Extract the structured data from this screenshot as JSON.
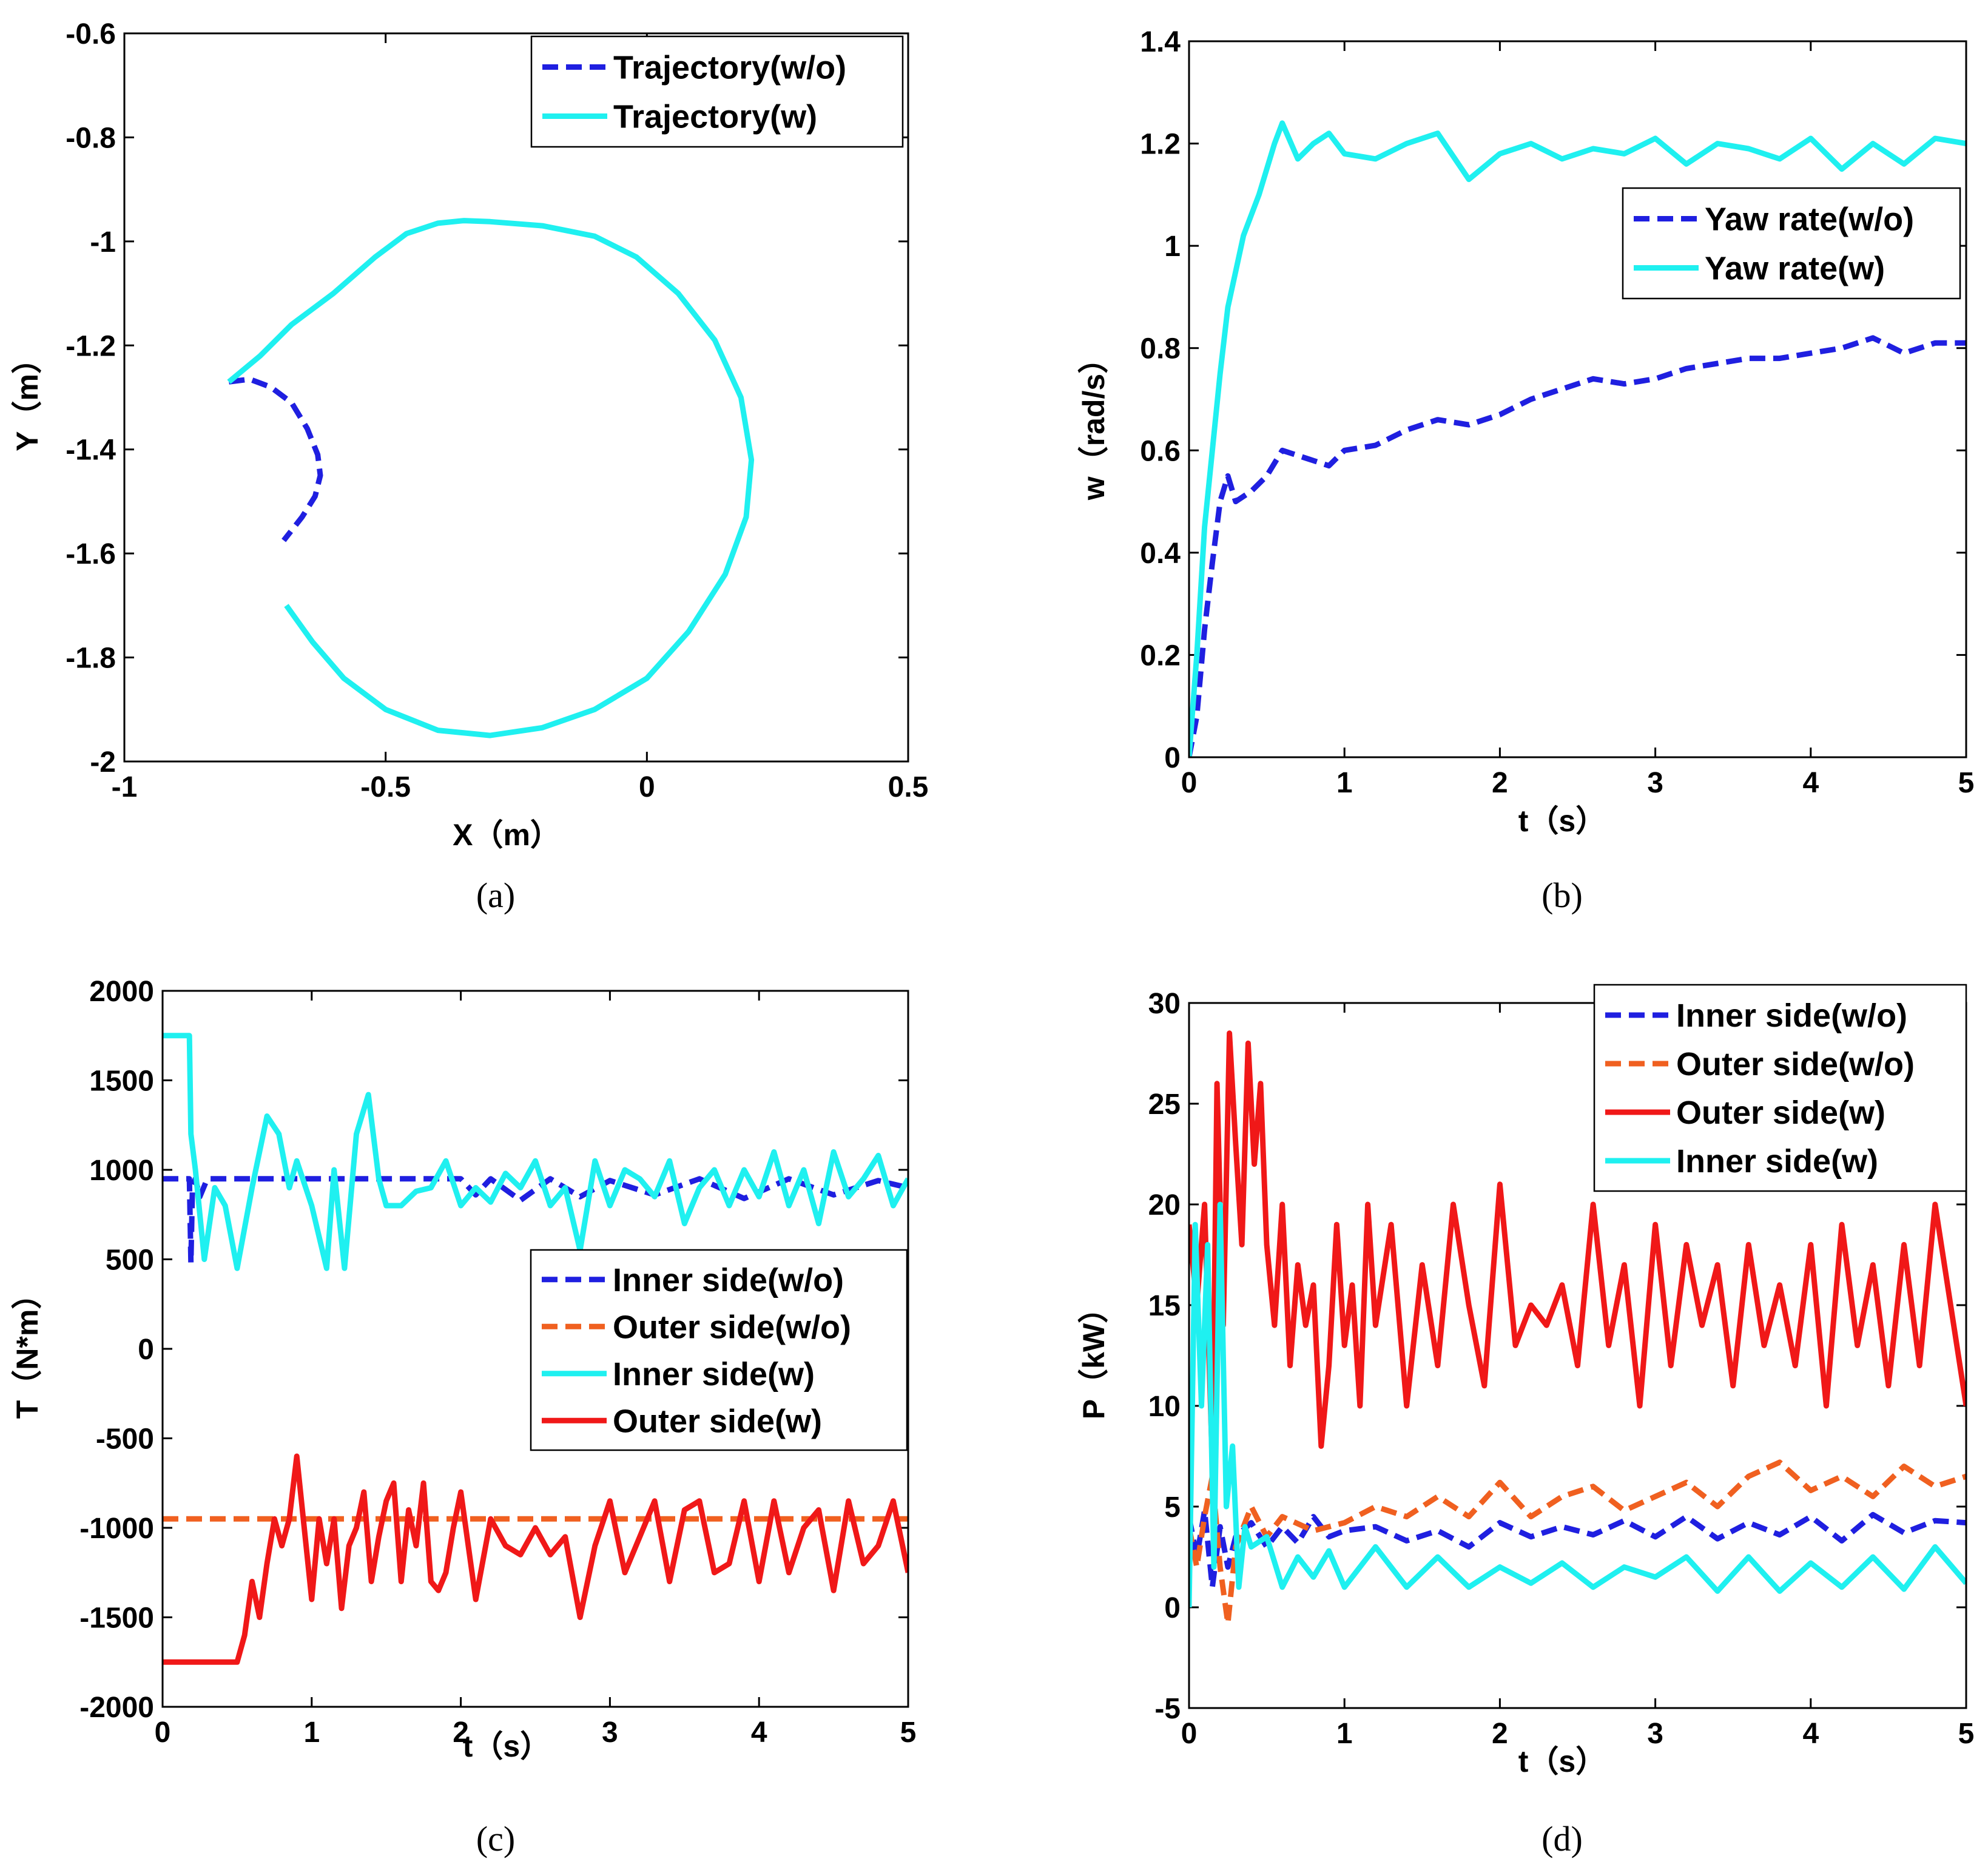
{
  "chart_data": [
    {
      "type": "line",
      "caption": "(a)",
      "xlabel": "X（m）",
      "ylabel": "Y（m）",
      "xlim": [
        -1,
        0.5
      ],
      "ylim": [
        -2,
        -0.6
      ],
      "y_reversed": true,
      "xticks": [
        -1,
        -0.5,
        0,
        0.5
      ],
      "xtick_labels": [
        "-1",
        "-0.5",
        "0",
        "0.5"
      ],
      "yticks": [
        -0.6,
        -0.8,
        -1,
        -1.2,
        -1.4,
        -1.6,
        -1.8,
        -2
      ],
      "ytick_labels": [
        "-0.6",
        "-0.8",
        "-1",
        "-1.2",
        "-1.4",
        "-1.6",
        "-1.8",
        "-2"
      ],
      "legend_position": "top-right",
      "series": [
        {
          "name": "Trajectory(w/o)",
          "color": "#1f1fe0",
          "style": "dashed",
          "x": [
            -0.8,
            -0.76,
            -0.72,
            -0.68,
            -0.65,
            -0.63,
            -0.625,
            -0.635,
            -0.66,
            -0.695
          ],
          "y": [
            -1.27,
            -1.265,
            -1.28,
            -1.31,
            -1.36,
            -1.41,
            -1.45,
            -1.49,
            -1.53,
            -1.575
          ]
        },
        {
          "name": "Trajectory(w)",
          "color": "#1ff0f0",
          "style": "solid",
          "x": [
            -0.8,
            -0.74,
            -0.68,
            -0.6,
            -0.52,
            -0.46,
            -0.4,
            -0.35,
            -0.3,
            -0.2,
            -0.1,
            -0.02,
            0.06,
            0.13,
            0.18,
            0.2,
            0.19,
            0.15,
            0.08,
            0,
            -0.1,
            -0.2,
            -0.3,
            -0.4,
            -0.5,
            -0.58,
            -0.64,
            -0.69
          ],
          "y": [
            -1.27,
            -1.22,
            -1.16,
            -1.1,
            -1.03,
            -0.985,
            -0.965,
            -0.96,
            -0.962,
            -0.97,
            -0.99,
            -1.03,
            -1.1,
            -1.19,
            -1.3,
            -1.42,
            -1.53,
            -1.64,
            -1.75,
            -1.84,
            -1.9,
            -1.935,
            -1.95,
            -1.94,
            -1.9,
            -1.84,
            -1.77,
            -1.7
          ]
        }
      ]
    },
    {
      "type": "line",
      "caption": "(b)",
      "xlabel": "t（s）",
      "ylabel": "w（rad/s）",
      "xlim": [
        0,
        5
      ],
      "ylim": [
        0,
        1.4
      ],
      "xticks": [
        0,
        1,
        2,
        3,
        4,
        5
      ],
      "xtick_labels": [
        "0",
        "1",
        "2",
        "3",
        "4",
        "5"
      ],
      "yticks": [
        0,
        0.2,
        0.4,
        0.6,
        0.8,
        1,
        1.2,
        1.4
      ],
      "ytick_labels": [
        "0",
        "0.2",
        "0.4",
        "0.6",
        "0.8",
        "1",
        "1.2",
        "1.4"
      ],
      "legend_position": "upper-right",
      "series": [
        {
          "name": "Yaw rate(w/o)",
          "color": "#1f1fe0",
          "style": "dashed",
          "x": [
            0,
            0.05,
            0.1,
            0.15,
            0.2,
            0.25,
            0.3,
            0.4,
            0.5,
            0.6,
            0.7,
            0.8,
            0.9,
            1.0,
            1.2,
            1.4,
            1.6,
            1.8,
            2.0,
            2.2,
            2.4,
            2.6,
            2.8,
            3.0,
            3.2,
            3.4,
            3.6,
            3.8,
            4.0,
            4.2,
            4.4,
            4.6,
            4.8,
            5.0
          ],
          "y": [
            0,
            0.08,
            0.25,
            0.38,
            0.5,
            0.55,
            0.5,
            0.52,
            0.55,
            0.6,
            0.59,
            0.58,
            0.57,
            0.6,
            0.61,
            0.64,
            0.66,
            0.65,
            0.67,
            0.7,
            0.72,
            0.74,
            0.73,
            0.74,
            0.76,
            0.77,
            0.78,
            0.78,
            0.79,
            0.8,
            0.82,
            0.79,
            0.81,
            0.81
          ]
        },
        {
          "name": "Yaw rate(w)",
          "color": "#1ff0f0",
          "style": "solid",
          "x": [
            0,
            0.05,
            0.1,
            0.15,
            0.2,
            0.25,
            0.3,
            0.35,
            0.4,
            0.45,
            0.5,
            0.55,
            0.6,
            0.7,
            0.8,
            0.9,
            1.0,
            1.2,
            1.4,
            1.6,
            1.8,
            2.0,
            2.2,
            2.4,
            2.6,
            2.8,
            3.0,
            3.2,
            3.4,
            3.6,
            3.8,
            4.0,
            4.2,
            4.4,
            4.6,
            4.8,
            5.0
          ],
          "y": [
            0,
            0.2,
            0.45,
            0.6,
            0.75,
            0.88,
            0.95,
            1.02,
            1.06,
            1.1,
            1.15,
            1.2,
            1.24,
            1.17,
            1.2,
            1.22,
            1.18,
            1.17,
            1.2,
            1.22,
            1.13,
            1.18,
            1.2,
            1.17,
            1.19,
            1.18,
            1.21,
            1.16,
            1.2,
            1.19,
            1.17,
            1.21,
            1.15,
            1.2,
            1.16,
            1.21,
            1.2
          ]
        }
      ]
    },
    {
      "type": "line",
      "caption": "(c)",
      "xlabel": "t（s）",
      "ylabel": "T（N*m）",
      "xlim": [
        0,
        5
      ],
      "ylim": [
        -2000,
        2000
      ],
      "xticks": [
        0,
        1,
        2,
        3,
        4,
        5
      ],
      "xtick_labels": [
        "0",
        "1",
        "2",
        "3",
        "4",
        "5"
      ],
      "yticks": [
        2000,
        1500,
        1000,
        500,
        0,
        -500,
        -1000,
        -1500,
        -2000
      ],
      "ytick_labels": [
        "2000",
        "1500",
        "1000",
        "500",
        "0",
        "-500",
        "-1000",
        "-1500",
        "-2000"
      ],
      "legend_position": "center-right",
      "series": [
        {
          "name": "Inner side(w/o)",
          "color": "#1f1fe0",
          "style": "dashed",
          "x": [
            0,
            0.18,
            0.19,
            0.2,
            0.22,
            0.25,
            0.3,
            0.5,
            0.8,
            1.0,
            1.5,
            2.0,
            2.1,
            2.2,
            2.4,
            2.6,
            2.8,
            3.0,
            3.3,
            3.6,
            3.9,
            4.2,
            4.5,
            4.8,
            5.0
          ],
          "y": [
            950,
            950,
            480,
            900,
            950,
            850,
            950,
            950,
            950,
            950,
            950,
            950,
            860,
            950,
            830,
            950,
            850,
            940,
            860,
            950,
            840,
            950,
            860,
            940,
            900
          ]
        },
        {
          "name": "Outer side(w/o)",
          "color": "#f06020",
          "style": "dashed",
          "x": [
            0,
            5
          ],
          "y": [
            -950,
            -950
          ]
        },
        {
          "name": "Inner side(w)",
          "color": "#1ff0f0",
          "style": "solid",
          "x": [
            0,
            0.18,
            0.19,
            0.22,
            0.28,
            0.35,
            0.42,
            0.5,
            0.6,
            0.7,
            0.78,
            0.85,
            0.9,
            1.0,
            1.1,
            1.15,
            1.22,
            1.3,
            1.38,
            1.45,
            1.5,
            1.6,
            1.7,
            1.8,
            1.9,
            2.0,
            2.1,
            2.2,
            2.3,
            2.4,
            2.5,
            2.6,
            2.7,
            2.8,
            2.9,
            3.0,
            3.1,
            3.2,
            3.3,
            3.4,
            3.5,
            3.6,
            3.7,
            3.8,
            3.9,
            4.0,
            4.1,
            4.2,
            4.3,
            4.4,
            4.5,
            4.6,
            4.7,
            4.8,
            4.9,
            5.0
          ],
          "y": [
            1750,
            1750,
            1200,
            1000,
            500,
            900,
            800,
            450,
            900,
            1300,
            1200,
            900,
            1050,
            800,
            450,
            1000,
            450,
            1200,
            1420,
            950,
            800,
            800,
            880,
            900,
            1050,
            800,
            900,
            820,
            980,
            900,
            1050,
            800,
            900,
            550,
            1050,
            800,
            1000,
            950,
            850,
            1050,
            700,
            900,
            1000,
            800,
            1000,
            850,
            1100,
            800,
            1000,
            700,
            1100,
            850,
            950,
            1080,
            800,
            950
          ]
        },
        {
          "name": "Outer side(w)",
          "color": "#f01818",
          "style": "solid",
          "x": [
            0,
            0.5,
            0.55,
            0.6,
            0.65,
            0.7,
            0.75,
            0.8,
            0.85,
            0.9,
            0.95,
            1.0,
            1.05,
            1.1,
            1.15,
            1.2,
            1.25,
            1.3,
            1.35,
            1.4,
            1.45,
            1.5,
            1.55,
            1.6,
            1.65,
            1.7,
            1.75,
            1.8,
            1.85,
            1.9,
            1.95,
            2.0,
            2.1,
            2.2,
            2.3,
            2.4,
            2.5,
            2.6,
            2.7,
            2.8,
            2.9,
            3.0,
            3.1,
            3.2,
            3.3,
            3.4,
            3.5,
            3.6,
            3.7,
            3.8,
            3.9,
            4.0,
            4.1,
            4.2,
            4.3,
            4.4,
            4.5,
            4.6,
            4.7,
            4.8,
            4.9,
            5.0
          ],
          "y": [
            -1750,
            -1750,
            -1600,
            -1300,
            -1500,
            -1200,
            -950,
            -1100,
            -950,
            -600,
            -1000,
            -1400,
            -950,
            -1200,
            -950,
            -1450,
            -1100,
            -1000,
            -800,
            -1300,
            -1050,
            -850,
            -750,
            -1300,
            -900,
            -1100,
            -750,
            -1300,
            -1350,
            -1250,
            -1000,
            -800,
            -1400,
            -950,
            -1100,
            -1150,
            -1000,
            -1150,
            -1050,
            -1500,
            -1100,
            -850,
            -1250,
            -1050,
            -850,
            -1300,
            -900,
            -850,
            -1250,
            -1200,
            -850,
            -1300,
            -850,
            -1250,
            -1000,
            -900,
            -1350,
            -850,
            -1200,
            -1100,
            -850,
            -1250
          ]
        }
      ]
    },
    {
      "type": "line",
      "caption": "(d)",
      "xlabel": "t（s）",
      "ylabel": "P（kW）",
      "xlim": [
        0,
        5
      ],
      "ylim": [
        -5,
        30
      ],
      "xticks": [
        0,
        1,
        2,
        3,
        4,
        5
      ],
      "xtick_labels": [
        "0",
        "1",
        "2",
        "3",
        "4",
        "5"
      ],
      "yticks": [
        30,
        25,
        20,
        15,
        10,
        5,
        0,
        -5
      ],
      "ytick_labels": [
        "30",
        "25",
        "20",
        "15",
        "10",
        "5",
        "0",
        "-5"
      ],
      "legend_position": "top-right",
      "series": [
        {
          "name": "Inner side(w/o)",
          "color": "#1f1fe0",
          "style": "dashed",
          "x": [
            0,
            0.05,
            0.1,
            0.15,
            0.2,
            0.25,
            0.3,
            0.4,
            0.5,
            0.6,
            0.7,
            0.8,
            0.9,
            1.0,
            1.2,
            1.4,
            1.6,
            1.8,
            2.0,
            2.2,
            2.4,
            2.6,
            2.8,
            3.0,
            3.2,
            3.4,
            3.6,
            3.8,
            4.0,
            4.2,
            4.4,
            4.6,
            4.8,
            5.0
          ],
          "y": [
            4.5,
            2.5,
            4.8,
            1.0,
            4.0,
            2.0,
            3.5,
            4.2,
            3.0,
            4.0,
            3.2,
            4.5,
            3.5,
            3.8,
            4.0,
            3.3,
            3.8,
            3.0,
            4.2,
            3.5,
            4.0,
            3.6,
            4.3,
            3.5,
            4.5,
            3.4,
            4.2,
            3.6,
            4.5,
            3.3,
            4.6,
            3.7,
            4.3,
            4.2
          ]
        },
        {
          "name": "Outer side(w/o)",
          "color": "#f06020",
          "style": "dashed",
          "x": [
            0,
            0.05,
            0.1,
            0.15,
            0.2,
            0.25,
            0.3,
            0.4,
            0.5,
            0.6,
            0.8,
            1.0,
            1.2,
            1.4,
            1.6,
            1.8,
            2.0,
            2.2,
            2.4,
            2.6,
            2.8,
            3.0,
            3.2,
            3.4,
            3.6,
            3.8,
            4.0,
            4.2,
            4.4,
            4.6,
            4.8,
            5.0
          ],
          "y": [
            4.0,
            2.0,
            4.5,
            6.5,
            2.0,
            -0.8,
            3.0,
            5.0,
            3.5,
            4.5,
            3.8,
            4.2,
            5.0,
            4.5,
            5.5,
            4.5,
            6.2,
            4.5,
            5.5,
            6.0,
            4.8,
            5.5,
            6.2,
            5.0,
            6.5,
            7.2,
            5.8,
            6.5,
            5.5,
            7.0,
            6.0,
            6.5
          ]
        },
        {
          "name": "Outer side(w)",
          "color": "#f01818",
          "style": "solid",
          "x": [
            0,
            0.05,
            0.1,
            0.15,
            0.18,
            0.22,
            0.26,
            0.3,
            0.34,
            0.38,
            0.42,
            0.46,
            0.5,
            0.55,
            0.6,
            0.65,
            0.7,
            0.75,
            0.8,
            0.85,
            0.9,
            0.95,
            1.0,
            1.05,
            1.1,
            1.15,
            1.2,
            1.3,
            1.4,
            1.5,
            1.6,
            1.7,
            1.8,
            1.9,
            2.0,
            2.1,
            2.2,
            2.3,
            2.4,
            2.5,
            2.6,
            2.7,
            2.8,
            2.9,
            3.0,
            3.1,
            3.2,
            3.3,
            3.4,
            3.5,
            3.6,
            3.7,
            3.8,
            3.9,
            4.0,
            4.1,
            4.2,
            4.3,
            4.4,
            4.5,
            4.6,
            4.7,
            4.8,
            4.9,
            5.0
          ],
          "y": [
            19,
            15,
            20,
            7,
            26,
            14,
            28.5,
            23,
            18,
            28,
            22,
            26,
            18,
            14,
            20,
            12,
            17,
            14,
            16,
            8,
            12,
            19,
            13,
            16,
            10,
            20,
            14,
            19,
            10,
            17,
            12,
            20,
            15,
            11,
            21,
            13,
            15,
            14,
            16,
            12,
            20,
            13,
            17,
            10,
            19,
            12,
            18,
            14,
            17,
            11,
            18,
            13,
            16,
            12,
            18,
            10,
            19,
            13,
            17,
            11,
            18,
            12,
            20,
            15,
            10
          ]
        },
        {
          "name": "Inner side(w)",
          "color": "#1ff0f0",
          "style": "solid",
          "x": [
            0,
            0.04,
            0.08,
            0.12,
            0.16,
            0.2,
            0.24,
            0.28,
            0.32,
            0.36,
            0.4,
            0.5,
            0.6,
            0.7,
            0.8,
            0.9,
            1.0,
            1.2,
            1.4,
            1.6,
            1.8,
            2.0,
            2.2,
            2.4,
            2.6,
            2.8,
            3.0,
            3.2,
            3.4,
            3.6,
            3.8,
            4.0,
            4.2,
            4.4,
            4.6,
            4.8,
            5.0
          ],
          "y": [
            0,
            19,
            10,
            18,
            2,
            20,
            5,
            8,
            1,
            4,
            3,
            3.5,
            1.0,
            2.5,
            1.5,
            2.8,
            1.0,
            3.0,
            1.0,
            2.5,
            1.0,
            2.0,
            1.2,
            2.2,
            1.0,
            2.0,
            1.5,
            2.5,
            0.8,
            2.5,
            0.8,
            2.2,
            1.0,
            2.5,
            0.9,
            3.0,
            1.2
          ]
        }
      ]
    }
  ]
}
